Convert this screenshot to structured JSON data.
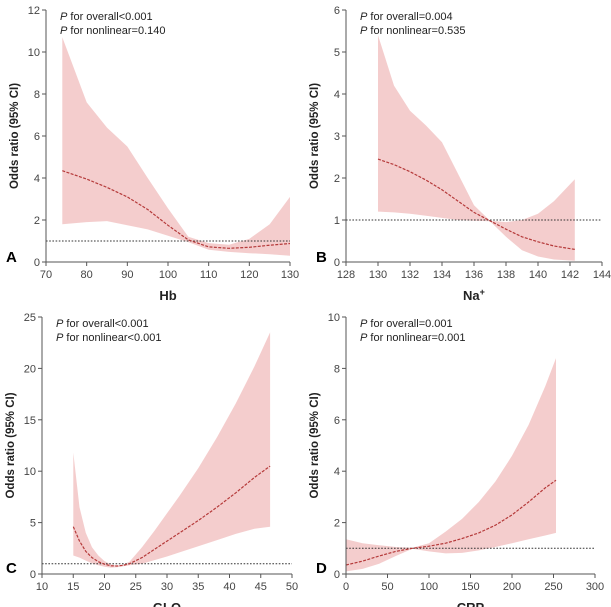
{
  "chart_data": [
    {
      "panel": "A",
      "type": "line",
      "xlabel": "Hb",
      "xlabel_sup": "",
      "ylabel": "Odds ratio (95% CI)",
      "xlim": [
        70,
        130
      ],
      "ylim": [
        0,
        12
      ],
      "xticks": [
        70,
        80,
        90,
        100,
        110,
        120,
        130
      ],
      "yticks": [
        0,
        2,
        4,
        6,
        8,
        10,
        12
      ],
      "annotations": [
        {
          "p": "P",
          "text": " for overall<0.001"
        },
        {
          "p": "P",
          "text": " for nonlinear=0.140"
        }
      ],
      "reference": 1,
      "estimate": {
        "x": [
          74,
          80,
          85,
          90,
          95,
          100,
          105,
          110,
          115,
          120,
          125,
          130
        ],
        "y": [
          4.35,
          3.95,
          3.55,
          3.1,
          2.5,
          1.75,
          1.05,
          0.72,
          0.65,
          0.7,
          0.8,
          0.88
        ]
      },
      "ci": {
        "x": [
          74,
          80,
          85,
          90,
          95,
          100,
          105,
          110,
          115,
          120,
          125,
          130
        ],
        "upper": [
          10.7,
          7.6,
          6.4,
          5.5,
          4.0,
          2.55,
          1.2,
          0.9,
          0.82,
          1.1,
          1.8,
          3.1
        ],
        "lower": [
          1.8,
          1.9,
          1.95,
          1.75,
          1.55,
          1.25,
          0.95,
          0.58,
          0.48,
          0.42,
          0.37,
          0.3
        ]
      }
    },
    {
      "panel": "B",
      "type": "line",
      "xlabel": "Na",
      "xlabel_sup": "+",
      "ylabel": "Odds ratio (95% CI)",
      "xlim": [
        128,
        144
      ],
      "ylim": [
        0,
        6
      ],
      "xticks": [
        128,
        130,
        132,
        134,
        136,
        138,
        140,
        142,
        144
      ],
      "yticks": [
        0,
        1,
        2,
        3,
        4,
        5,
        6
      ],
      "annotations": [
        {
          "p": "P",
          "text": " for overall=0.004"
        },
        {
          "p": "P",
          "text": " for nonlinear=0.535"
        }
      ],
      "reference": 1,
      "estimate": {
        "x": [
          130,
          131,
          132,
          133,
          134,
          135,
          136,
          137,
          138,
          139,
          140,
          141,
          142.3
        ],
        "y": [
          2.45,
          2.32,
          2.15,
          1.95,
          1.72,
          1.45,
          1.18,
          0.98,
          0.78,
          0.6,
          0.48,
          0.38,
          0.3
        ]
      },
      "ci": {
        "x": [
          130,
          131,
          132,
          133,
          134,
          135,
          136,
          137,
          138,
          139,
          140,
          141,
          142.3
        ],
        "upper": [
          5.4,
          4.2,
          3.6,
          3.25,
          2.85,
          2.1,
          1.35,
          0.98,
          0.95,
          1.0,
          1.15,
          1.45,
          1.97
        ],
        "lower": [
          1.2,
          1.18,
          1.15,
          1.1,
          1.05,
          1.0,
          0.98,
          0.97,
          0.6,
          0.28,
          0.13,
          0.06,
          0.03
        ]
      }
    },
    {
      "panel": "C",
      "type": "line",
      "xlabel": "GLO",
      "xlabel_sup": "",
      "ylabel": "Odds ratio (95% CI)",
      "xlim": [
        10,
        50
      ],
      "ylim": [
        0,
        25
      ],
      "xticks": [
        10,
        15,
        20,
        25,
        30,
        35,
        40,
        45,
        50
      ],
      "yticks": [
        0,
        5,
        10,
        15,
        20,
        25
      ],
      "annotations": [
        {
          "p": "P",
          "text": " for overall<0.001"
        },
        {
          "p": "P",
          "text": " for nonlinear<0.001"
        }
      ],
      "reference": 1,
      "estimate": {
        "x": [
          15,
          16,
          17,
          18,
          19,
          20,
          21,
          22,
          23,
          24,
          26,
          28,
          30,
          32,
          35,
          38,
          41,
          44,
          46.5
        ],
        "y": [
          4.6,
          3.2,
          2.2,
          1.6,
          1.2,
          0.95,
          0.8,
          0.78,
          0.85,
          1.0,
          1.6,
          2.4,
          3.2,
          4.0,
          5.2,
          6.5,
          7.9,
          9.4,
          10.5
        ]
      },
      "ci": {
        "x": [
          15,
          16,
          17,
          18,
          19,
          20,
          21,
          22,
          23,
          24,
          26,
          28,
          30,
          32,
          35,
          38,
          41,
          44,
          46.5
        ],
        "upper": [
          11.8,
          6.5,
          4.0,
          2.6,
          1.8,
          1.25,
          0.95,
          0.82,
          0.9,
          1.2,
          2.6,
          4.2,
          5.9,
          7.6,
          10.3,
          13.3,
          16.6,
          20.2,
          23.5
        ],
        "lower": [
          1.8,
          1.6,
          1.3,
          1.05,
          0.85,
          0.7,
          0.62,
          0.65,
          0.75,
          0.85,
          1.0,
          1.35,
          1.7,
          2.1,
          2.7,
          3.3,
          3.9,
          4.4,
          4.6
        ]
      }
    },
    {
      "panel": "D",
      "type": "line",
      "xlabel": "CRP",
      "xlabel_sup": "",
      "ylabel": "Odds ratio (95% CI)",
      "xlim": [
        0,
        300
      ],
      "ylim": [
        0,
        10
      ],
      "xticks": [
        0,
        50,
        100,
        150,
        200,
        250,
        300
      ],
      "yticks": [
        0,
        2,
        4,
        6,
        8,
        10
      ],
      "annotations": [
        {
          "p": "P",
          "text": " for overall=0.001"
        },
        {
          "p": "P",
          "text": " for nonlinear=0.001"
        }
      ],
      "reference": 1,
      "estimate": {
        "x": [
          0,
          20,
          40,
          60,
          80,
          100,
          120,
          140,
          160,
          180,
          200,
          220,
          240,
          253
        ],
        "y": [
          0.35,
          0.5,
          0.7,
          0.88,
          1.0,
          1.08,
          1.2,
          1.38,
          1.6,
          1.9,
          2.3,
          2.8,
          3.35,
          3.65
        ]
      },
      "ci": {
        "x": [
          0,
          20,
          40,
          60,
          80,
          100,
          120,
          140,
          160,
          180,
          200,
          220,
          240,
          253
        ],
        "upper": [
          1.35,
          1.2,
          1.12,
          1.05,
          1.02,
          1.2,
          1.65,
          2.15,
          2.8,
          3.6,
          4.6,
          5.8,
          7.3,
          8.4
        ],
        "lower": [
          0.1,
          0.2,
          0.4,
          0.7,
          0.98,
          0.88,
          0.8,
          0.82,
          0.92,
          1.05,
          1.2,
          1.35,
          1.5,
          1.6
        ]
      }
    }
  ]
}
